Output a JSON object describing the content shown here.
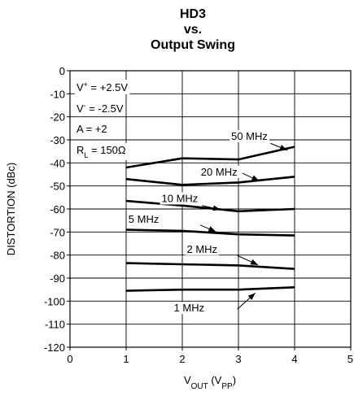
{
  "chart_data": {
    "type": "line",
    "title": [
      "HD3",
      "vs.",
      "Output Swing"
    ],
    "xlabel": {
      "main": "V",
      "sub": "OUT",
      "rest": " (V",
      "sub2": "PP",
      "end": ")"
    },
    "ylabel": "DISTORTION (dBc)",
    "xlim": [
      0,
      5
    ],
    "ylim": [
      -120,
      0
    ],
    "xticks": [
      "0",
      "1",
      "2",
      "3",
      "4",
      "5"
    ],
    "yticks": [
      "0",
      "-10",
      "-20",
      "-30",
      "-40",
      "-50",
      "-60",
      "-70",
      "-80",
      "-90",
      "-100",
      "-110",
      "-120"
    ],
    "grid": true,
    "conditions": [
      {
        "pre": "V",
        "sup": "+",
        "sub": "",
        "post": " = +2.5V"
      },
      {
        "pre": "V",
        "sup": "-",
        "sub": "",
        "post": " = -2.5V"
      },
      {
        "pre": "A = +2",
        "sup": "",
        "sub": "",
        "post": ""
      },
      {
        "pre": "R",
        "sup": "",
        "sub": "L",
        "post": " = 150Ω"
      }
    ],
    "series": [
      {
        "name": "50 MHz",
        "x": [
          1,
          2,
          3,
          4
        ],
        "y": [
          -42,
          -38,
          -38.5,
          -33
        ]
      },
      {
        "name": "20 MHz",
        "x": [
          1,
          2,
          3,
          4
        ],
        "y": [
          -47,
          -49.5,
          -48.5,
          -46
        ]
      },
      {
        "name": "10 MHz",
        "x": [
          1,
          2,
          3,
          4
        ],
        "y": [
          -56.5,
          -58.5,
          -61,
          -60
        ]
      },
      {
        "name": "5 MHz",
        "x": [
          1,
          2,
          3,
          4
        ],
        "y": [
          -69,
          -69.5,
          -71,
          -71.5
        ]
      },
      {
        "name": "2 MHz",
        "x": [
          1,
          2,
          3,
          4
        ],
        "y": [
          -83.5,
          -84,
          -84.5,
          -86
        ]
      },
      {
        "name": "1 MHz",
        "x": [
          1,
          2,
          3,
          4
        ],
        "y": [
          -95.5,
          -95,
          -95,
          -94
        ]
      }
    ]
  }
}
